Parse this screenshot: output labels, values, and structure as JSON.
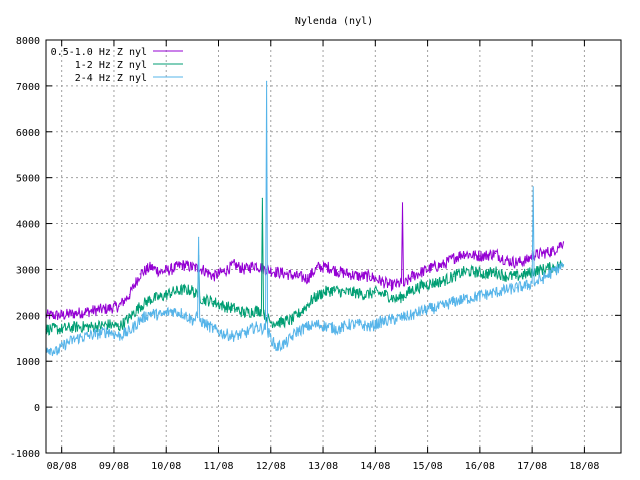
{
  "chart_data": {
    "type": "line",
    "title": "Nylenda (nyl)",
    "xlabel": "",
    "ylabel": "",
    "ylim": [
      -1000,
      8000
    ],
    "yticks": [
      -1000,
      0,
      1000,
      2000,
      3000,
      4000,
      5000,
      6000,
      7000,
      8000
    ],
    "xlim": [
      7.7,
      18.7
    ],
    "xticks": [
      {
        "x": 8,
        "label": "08/08"
      },
      {
        "x": 9,
        "label": "09/08"
      },
      {
        "x": 10,
        "label": "10/08"
      },
      {
        "x": 11,
        "label": "11/08"
      },
      {
        "x": 12,
        "label": "12/08"
      },
      {
        "x": 13,
        "label": "13/08"
      },
      {
        "x": 14,
        "label": "14/08"
      },
      {
        "x": 15,
        "label": "15/08"
      },
      {
        "x": 16,
        "label": "16/08"
      },
      {
        "x": 17,
        "label": "17/08"
      },
      {
        "x": 18,
        "label": "18/08"
      }
    ],
    "grid": true,
    "legend_position": "top-left",
    "series": [
      {
        "name": "0.5-1.0 Hz Z nyl",
        "color": "#9400d3",
        "x": [
          7.7,
          8.0,
          8.3,
          8.6,
          8.9,
          9.1,
          9.3,
          9.5,
          9.7,
          9.9,
          10.1,
          10.3,
          10.5,
          10.7,
          10.9,
          11.1,
          11.3,
          11.5,
          11.7,
          11.9,
          12.1,
          12.3,
          12.5,
          12.7,
          12.9,
          13.1,
          13.3,
          13.5,
          13.7,
          13.9,
          14.1,
          14.3,
          14.5,
          14.52,
          14.54,
          14.7,
          14.9,
          15.1,
          15.3,
          15.5,
          15.7,
          15.9,
          16.1,
          16.3,
          16.5,
          16.7,
          16.9,
          17.0,
          17.2,
          17.4,
          17.6
        ],
        "y": [
          2000,
          2000,
          2050,
          2100,
          2150,
          2200,
          2450,
          2900,
          3050,
          2950,
          3000,
          3100,
          3050,
          3000,
          2850,
          2950,
          3100,
          3000,
          3100,
          3000,
          2950,
          2900,
          2850,
          2800,
          3050,
          3050,
          2950,
          2900,
          2850,
          2850,
          2750,
          2650,
          2700,
          4450,
          2650,
          2850,
          2950,
          3050,
          3100,
          3250,
          3350,
          3300,
          3300,
          3350,
          3200,
          3150,
          3200,
          3300,
          3350,
          3400,
          3600
        ]
      },
      {
        "name": "1-2 Hz Z nyl",
        "color": "#009e73",
        "x": [
          7.7,
          8.0,
          8.3,
          8.6,
          8.9,
          9.1,
          9.3,
          9.5,
          9.7,
          9.9,
          10.1,
          10.3,
          10.5,
          10.6,
          10.62,
          10.64,
          10.7,
          10.9,
          11.1,
          11.3,
          11.5,
          11.7,
          11.82,
          11.84,
          11.86,
          12.0,
          12.2,
          12.4,
          12.6,
          12.8,
          13.0,
          13.2,
          13.4,
          13.6,
          13.8,
          14.0,
          14.2,
          14.4,
          14.5,
          14.7,
          14.9,
          15.1,
          15.3,
          15.5,
          15.7,
          15.9,
          16.1,
          16.3,
          16.5,
          16.7,
          16.9,
          17.0,
          17.2,
          17.4,
          17.6
        ],
        "y": [
          1700,
          1700,
          1750,
          1750,
          1800,
          1750,
          1950,
          2200,
          2350,
          2400,
          2500,
          2550,
          2550,
          2400,
          3300,
          2400,
          2350,
          2300,
          2200,
          2150,
          2050,
          2100,
          2100,
          4550,
          2050,
          1850,
          1850,
          1900,
          2100,
          2350,
          2500,
          2550,
          2500,
          2500,
          2450,
          2500,
          2450,
          2350,
          2400,
          2550,
          2650,
          2700,
          2750,
          2850,
          2950,
          2950,
          2900,
          2950,
          2850,
          2850,
          2900,
          2950,
          3000,
          3050,
          3100
        ]
      },
      {
        "name": "2-4 Hz Z nyl",
        "color": "#56b4e9",
        "x": [
          7.7,
          7.9,
          8.1,
          8.3,
          8.5,
          8.7,
          8.9,
          9.1,
          9.3,
          9.5,
          9.7,
          9.9,
          10.1,
          10.3,
          10.5,
          10.6,
          10.62,
          10.64,
          10.7,
          10.9,
          11.1,
          11.3,
          11.5,
          11.7,
          11.9,
          11.92,
          11.94,
          12.1,
          12.3,
          12.5,
          12.7,
          12.9,
          13.1,
          13.3,
          13.5,
          13.7,
          13.9,
          14.1,
          14.3,
          14.5,
          14.7,
          14.9,
          15.1,
          15.3,
          15.5,
          15.7,
          15.9,
          16.1,
          16.3,
          16.5,
          16.7,
          16.9,
          17.0,
          17.02,
          17.04,
          17.2,
          17.4,
          17.6
        ],
        "y": [
          1300,
          1200,
          1400,
          1500,
          1550,
          1600,
          1650,
          1550,
          1650,
          1900,
          2050,
          2000,
          2100,
          2050,
          1900,
          1950,
          3700,
          1900,
          1850,
          1700,
          1600,
          1550,
          1600,
          1750,
          1700,
          7100,
          1650,
          1300,
          1400,
          1650,
          1750,
          1800,
          1750,
          1700,
          1800,
          1800,
          1750,
          1850,
          1900,
          1950,
          2000,
          2100,
          2150,
          2200,
          2300,
          2350,
          2400,
          2450,
          2500,
          2550,
          2600,
          2650,
          2700,
          4800,
          2700,
          2800,
          2950,
          3100
        ]
      }
    ]
  }
}
